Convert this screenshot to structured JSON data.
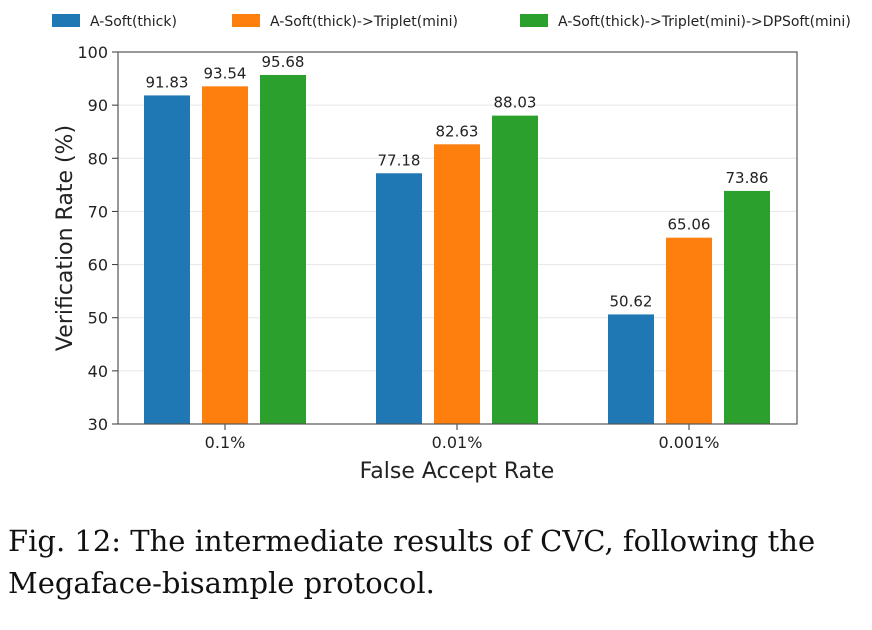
{
  "chart_data": {
    "type": "bar",
    "categories": [
      "0.1%",
      "0.01%",
      "0.001%"
    ],
    "series": [
      {
        "name": "A-Soft(thick)",
        "color": "#1f77b4",
        "values": [
          91.83,
          77.18,
          50.62
        ]
      },
      {
        "name": "A-Soft(thick)->Triplet(mini)",
        "color": "#ff7f0e",
        "values": [
          93.54,
          82.63,
          65.06
        ]
      },
      {
        "name": "A-Soft(thick)->Triplet(mini)->DPSoft(mini)",
        "color": "#2ca02c",
        "values": [
          95.68,
          88.03,
          73.86
        ]
      }
    ],
    "data_labels": [
      [
        "91.83",
        "77.18",
        "50.62"
      ],
      [
        "93.54",
        "82.63",
        "65.06"
      ],
      [
        "95.68",
        "88.03",
        "73.86"
      ]
    ],
    "xlabel": "False Accept Rate",
    "ylabel": "Verification Rate (%)",
    "ylim": [
      30,
      100
    ],
    "yticks": [
      "30",
      "40",
      "50",
      "60",
      "70",
      "80",
      "90",
      "100"
    ],
    "grid": true,
    "legend_position": "top"
  },
  "caption": "Fig. 12: The intermediate results of CVC, following the Megaface-bisample protocol."
}
